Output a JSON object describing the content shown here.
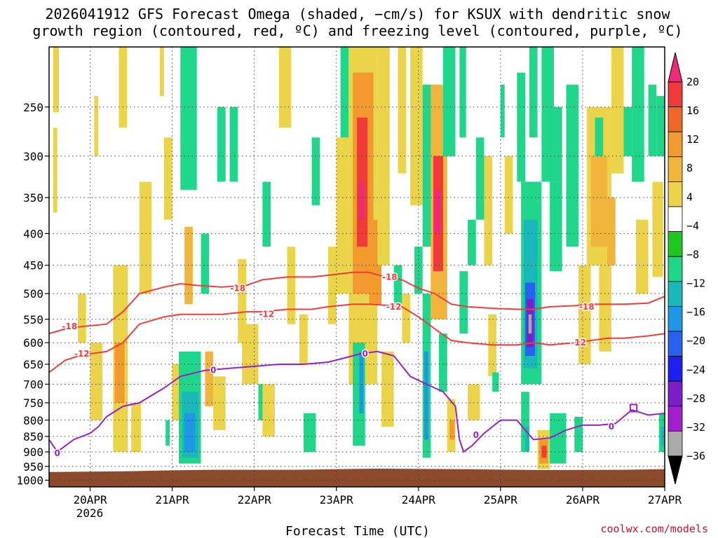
{
  "chart_data": {
    "type": "heatmap",
    "title_lines": [
      "2026041912 GFS Forecast Omega (shaded, −cm/s) for KSUX with dendritic snow",
      "growth region (contoured, red, ºC) and freezing level (contoured, purple, ºC)"
    ],
    "xlabel": "Forecast Time (UTC)",
    "ylabel": "",
    "x_ticks": [
      "20APR",
      "21APR",
      "22APR",
      "23APR",
      "24APR",
      "25APR",
      "26APR",
      "27APR"
    ],
    "x_tick_year": "2026",
    "x_range_days": [
      19.5,
      27.0
    ],
    "y_ticks": [
      250,
      300,
      350,
      400,
      450,
      500,
      550,
      600,
      650,
      700,
      750,
      800,
      850,
      900,
      950,
      1000
    ],
    "y_range_hpa": [
      200,
      1025
    ],
    "y_scale": "log-pressure",
    "grid": true,
    "colorbar": {
      "labels": [
        "20",
        "16",
        "12",
        "8",
        "4",
        "−4",
        "−8",
        "−12",
        "−16",
        "−20",
        "−24",
        "−28",
        "−32",
        "−36"
      ],
      "colors": [
        "#ee2a7b",
        "#f23a3a",
        "#f0672a",
        "#f39a2f",
        "#f1b43c",
        "#ebd34a",
        "#ffffff",
        "#1fc71f",
        "#1fd68a",
        "#1ab8b8",
        "#1f96e6",
        "#2860f0",
        "#1f1ff0",
        "#7a1fc7",
        "#a11fcf",
        "#aaaaaa",
        "#000000"
      ]
    },
    "series": [
      {
        "name": "-18",
        "color": "#f03c3c",
        "x": [
          19.5,
          19.7,
          19.9,
          20.2,
          20.4,
          20.6,
          20.9,
          21.1,
          21.3,
          21.6,
          21.9,
          22.1,
          22.4,
          22.7,
          22.9,
          23.2,
          23.4,
          23.6,
          23.8,
          24.0,
          24.2,
          24.4,
          24.6,
          24.9,
          25.2,
          25.4,
          25.6,
          25.9,
          26.1,
          26.3,
          26.5,
          26.8,
          27.0
        ],
        "y": [
          580,
          570,
          565,
          560,
          535,
          500,
          488,
          482,
          485,
          488,
          485,
          475,
          470,
          470,
          467,
          462,
          462,
          470,
          475,
          490,
          500,
          520,
          525,
          528,
          530,
          530,
          525,
          523,
          520,
          520,
          520,
          518,
          505
        ]
      },
      {
        "name": "-12",
        "color": "#f03c3c",
        "x": [
          19.5,
          19.7,
          19.9,
          20.2,
          20.4,
          20.6,
          20.9,
          21.1,
          21.3,
          21.6,
          21.9,
          22.1,
          22.4,
          22.7,
          22.9,
          23.2,
          23.4,
          23.6,
          23.8,
          24.0,
          24.2,
          24.4,
          24.6,
          24.9,
          25.2,
          25.4,
          25.6,
          25.9,
          26.1,
          26.3,
          26.5,
          26.8,
          27.0
        ],
        "y": [
          670,
          640,
          628,
          620,
          600,
          560,
          545,
          540,
          540,
          540,
          535,
          535,
          530,
          530,
          525,
          520,
          520,
          522,
          525,
          545,
          570,
          595,
          600,
          605,
          605,
          600,
          605,
          600,
          595,
          590,
          590,
          585,
          580
        ]
      },
      {
        "name": "0",
        "color": "#9b1fc7",
        "x": [
          19.5,
          19.6,
          19.8,
          20.0,
          20.1,
          20.2,
          20.4,
          20.6,
          20.9,
          21.1,
          21.4,
          21.7,
          22.0,
          22.3,
          22.6,
          22.9,
          23.1,
          23.3,
          23.5,
          23.7,
          23.9,
          24.1,
          24.3,
          24.45,
          24.5,
          24.55,
          24.65,
          24.8,
          25.0,
          25.2,
          25.3,
          25.4,
          25.6,
          25.8,
          26.0,
          26.2,
          26.4,
          26.6,
          26.8,
          27.0
        ],
        "y": [
          860,
          900,
          860,
          840,
          820,
          790,
          760,
          750,
          710,
          680,
          665,
          660,
          655,
          650,
          650,
          645,
          635,
          625,
          620,
          630,
          680,
          700,
          720,
          760,
          860,
          900,
          880,
          840,
          800,
          800,
          830,
          860,
          855,
          830,
          815,
          815,
          810,
          770,
          785,
          780
        ]
      }
    ],
    "contour_labels": [
      {
        "text": "-18",
        "x": 19.75,
        "y": 565
      },
      {
        "text": "-18",
        "x": 21.8,
        "y": 490
      },
      {
        "text": "-18",
        "x": 23.65,
        "y": 470
      },
      {
        "text": "-18",
        "x": 26.05,
        "y": 525
      },
      {
        "text": "-12",
        "x": 19.9,
        "y": 625
      },
      {
        "text": "-12",
        "x": 22.15,
        "y": 540
      },
      {
        "text": "-12",
        "x": 23.7,
        "y": 525
      },
      {
        "text": "-12",
        "x": 25.95,
        "y": 600
      },
      {
        "text": "0",
        "x": 19.6,
        "y": 905
      },
      {
        "text": "0",
        "x": 21.5,
        "y": 665
      },
      {
        "text": "0",
        "x": 23.35,
        "y": 625
      },
      {
        "text": "0",
        "x": 24.7,
        "y": 845
      },
      {
        "text": "0",
        "x": 26.35,
        "y": 820
      }
    ],
    "omega_patches": [
      {
        "x0": 19.55,
        "x1": 19.62,
        "p0": 200,
        "p1": 255,
        "value": 6
      },
      {
        "x0": 19.55,
        "x1": 19.6,
        "p0": 270,
        "p1": 370,
        "value": 6
      },
      {
        "x0": 19.85,
        "x1": 19.95,
        "p0": 500,
        "p1": 600,
        "value": 6
      },
      {
        "x0": 20.0,
        "x1": 20.15,
        "p0": 600,
        "p1": 800,
        "value": 6
      },
      {
        "x0": 20.05,
        "x1": 20.1,
        "p0": 240,
        "p1": 300,
        "value": 6
      },
      {
        "x0": 20.35,
        "x1": 20.45,
        "p0": 200,
        "p1": 270,
        "value": 6
      },
      {
        "x0": 20.28,
        "x1": 20.46,
        "p0": 450,
        "p1": 900,
        "value": 6
      },
      {
        "x0": 20.3,
        "x1": 20.42,
        "p0": 600,
        "p1": 750,
        "value": 14
      },
      {
        "x0": 20.5,
        "x1": 20.62,
        "p0": 750,
        "p1": 900,
        "value": 6
      },
      {
        "x0": 20.6,
        "x1": 20.75,
        "p0": 330,
        "p1": 500,
        "value": 6
      },
      {
        "x0": 20.85,
        "x1": 20.9,
        "p0": 200,
        "p1": 240,
        "value": 6
      },
      {
        "x0": 20.9,
        "x1": 21.0,
        "p0": 280,
        "p1": 380,
        "value": 6
      },
      {
        "x0": 21.1,
        "x1": 21.3,
        "p0": 200,
        "p1": 340,
        "value": -8
      },
      {
        "x0": 21.15,
        "x1": 21.25,
        "p0": 390,
        "p1": 520,
        "value": 10
      },
      {
        "x0": 21.0,
        "x1": 21.08,
        "p0": 650,
        "p1": 800,
        "value": 6
      },
      {
        "x0": 20.92,
        "x1": 20.97,
        "p0": 800,
        "p1": 880,
        "value": -8
      },
      {
        "x0": 21.08,
        "x1": 21.35,
        "p0": 620,
        "p1": 940,
        "value": -8
      },
      {
        "x0": 21.12,
        "x1": 21.32,
        "p0": 720,
        "p1": 920,
        "value": -14
      },
      {
        "x0": 21.15,
        "x1": 21.28,
        "p0": 780,
        "p1": 900,
        "value": -18
      },
      {
        "x0": 21.35,
        "x1": 21.45,
        "p0": 400,
        "p1": 500,
        "value": -8
      },
      {
        "x0": 21.4,
        "x1": 21.5,
        "p0": 620,
        "p1": 760,
        "value": 10
      },
      {
        "x0": 21.5,
        "x1": 21.65,
        "p0": 680,
        "p1": 830,
        "value": 6
      },
      {
        "x0": 21.55,
        "x1": 21.65,
        "p0": 250,
        "p1": 330,
        "value": -8
      },
      {
        "x0": 21.7,
        "x1": 21.8,
        "p0": 250,
        "p1": 330,
        "value": -8
      },
      {
        "x0": 21.8,
        "x1": 21.9,
        "p0": 440,
        "p1": 600,
        "value": 6
      },
      {
        "x0": 21.85,
        "x1": 22.05,
        "p0": 560,
        "p1": 700,
        "value": 6
      },
      {
        "x0": 22.1,
        "x1": 22.2,
        "p0": 330,
        "p1": 420,
        "value": -8
      },
      {
        "x0": 22.05,
        "x1": 22.12,
        "p0": 700,
        "p1": 800,
        "value": -8
      },
      {
        "x0": 22.1,
        "x1": 22.25,
        "p0": 700,
        "p1": 850,
        "value": 6
      },
      {
        "x0": 22.3,
        "x1": 22.45,
        "p0": 200,
        "p1": 270,
        "value": 6
      },
      {
        "x0": 22.4,
        "x1": 22.5,
        "p0": 420,
        "p1": 560,
        "value": 6
      },
      {
        "x0": 22.55,
        "x1": 22.65,
        "p0": 540,
        "p1": 650,
        "value": 6
      },
      {
        "x0": 22.6,
        "x1": 22.75,
        "p0": 780,
        "p1": 900,
        "value": -8
      },
      {
        "x0": 22.7,
        "x1": 22.8,
        "p0": 280,
        "p1": 360,
        "value": -8
      },
      {
        "x0": 22.9,
        "x1": 23.0,
        "p0": 420,
        "p1": 560,
        "value": 6
      },
      {
        "x0": 23.0,
        "x1": 23.15,
        "p0": 280,
        "p1": 500,
        "value": 6
      },
      {
        "x0": 23.05,
        "x1": 23.15,
        "p0": 200,
        "p1": 280,
        "value": -8
      },
      {
        "x0": 23.15,
        "x1": 23.5,
        "p0": 200,
        "p1": 700,
        "value": 6
      },
      {
        "x0": 23.2,
        "x1": 23.45,
        "p0": 220,
        "p1": 500,
        "value": 12
      },
      {
        "x0": 23.25,
        "x1": 23.38,
        "p0": 260,
        "p1": 420,
        "value": 16
      },
      {
        "x0": 23.28,
        "x1": 23.34,
        "p0": 330,
        "p1": 380,
        "value": 20
      },
      {
        "x0": 23.2,
        "x1": 23.35,
        "p0": 600,
        "p1": 880,
        "value": -8
      },
      {
        "x0": 23.28,
        "x1": 23.33,
        "p0": 620,
        "p1": 780,
        "value": -18
      },
      {
        "x0": 23.4,
        "x1": 23.55,
        "p0": 380,
        "p1": 520,
        "value": 12
      },
      {
        "x0": 23.5,
        "x1": 23.65,
        "p0": 200,
        "p1": 450,
        "value": 6
      },
      {
        "x0": 23.55,
        "x1": 23.7,
        "p0": 620,
        "p1": 820,
        "value": 6
      },
      {
        "x0": 23.7,
        "x1": 23.8,
        "p0": 450,
        "p1": 520,
        "value": -8
      },
      {
        "x0": 23.75,
        "x1": 23.85,
        "p0": 200,
        "p1": 320,
        "value": 6
      },
      {
        "x0": 23.8,
        "x1": 23.9,
        "p0": 500,
        "p1": 600,
        "value": 6
      },
      {
        "x0": 23.9,
        "x1": 24.05,
        "p0": 200,
        "p1": 360,
        "value": 6
      },
      {
        "x0": 23.95,
        "x1": 24.05,
        "p0": 420,
        "p1": 500,
        "value": -8
      },
      {
        "x0": 24.05,
        "x1": 24.2,
        "p0": 230,
        "p1": 420,
        "value": -8
      },
      {
        "x0": 24.05,
        "x1": 24.15,
        "p0": 500,
        "p1": 920,
        "value": -8
      },
      {
        "x0": 24.07,
        "x1": 24.12,
        "p0": 620,
        "p1": 860,
        "value": -16
      },
      {
        "x0": 24.15,
        "x1": 24.35,
        "p0": 230,
        "p1": 550,
        "value": 8
      },
      {
        "x0": 24.18,
        "x1": 24.3,
        "p0": 300,
        "p1": 460,
        "value": 16
      },
      {
        "x0": 24.2,
        "x1": 24.27,
        "p0": 340,
        "p1": 400,
        "value": 20
      },
      {
        "x0": 24.25,
        "x1": 24.35,
        "p0": 580,
        "p1": 720,
        "value": -8
      },
      {
        "x0": 24.3,
        "x1": 24.45,
        "p0": 200,
        "p1": 300,
        "value": -8
      },
      {
        "x0": 24.35,
        "x1": 24.45,
        "p0": 740,
        "p1": 900,
        "value": 6
      },
      {
        "x0": 24.38,
        "x1": 24.44,
        "p0": 800,
        "p1": 860,
        "value": 14
      },
      {
        "x0": 24.5,
        "x1": 24.58,
        "p0": 200,
        "p1": 280,
        "value": -8
      },
      {
        "x0": 24.5,
        "x1": 24.6,
        "p0": 460,
        "p1": 580,
        "value": -8
      },
      {
        "x0": 24.6,
        "x1": 24.7,
        "p0": 380,
        "p1": 450,
        "value": -8
      },
      {
        "x0": 24.6,
        "x1": 24.75,
        "p0": 700,
        "p1": 800,
        "value": 6
      },
      {
        "x0": 24.7,
        "x1": 24.8,
        "p0": 280,
        "p1": 380,
        "value": -8
      },
      {
        "x0": 24.8,
        "x1": 24.9,
        "p0": 300,
        "p1": 450,
        "value": 6
      },
      {
        "x0": 24.85,
        "x1": 24.95,
        "p0": 540,
        "p1": 680,
        "value": 6
      },
      {
        "x0": 24.9,
        "x1": 24.98,
        "p0": 670,
        "p1": 720,
        "value": -8
      },
      {
        "x0": 25.0,
        "x1": 25.05,
        "p0": 230,
        "p1": 280,
        "value": -8
      },
      {
        "x0": 25.05,
        "x1": 25.15,
        "p0": 300,
        "p1": 400,
        "value": 6
      },
      {
        "x0": 25.25,
        "x1": 25.5,
        "p0": 330,
        "p1": 700,
        "value": -8
      },
      {
        "x0": 25.28,
        "x1": 25.45,
        "p0": 380,
        "p1": 660,
        "value": -14
      },
      {
        "x0": 25.3,
        "x1": 25.42,
        "p0": 480,
        "p1": 630,
        "value": -22
      },
      {
        "x0": 25.32,
        "x1": 25.4,
        "p0": 510,
        "p1": 610,
        "value": -26
      },
      {
        "x0": 25.34,
        "x1": 25.38,
        "p0": 540,
        "p1": 580,
        "value": -34
      },
      {
        "x0": 25.25,
        "x1": 25.35,
        "p0": 720,
        "p1": 900,
        "value": -8
      },
      {
        "x0": 25.3,
        "x1": 25.35,
        "p0": 820,
        "p1": 900,
        "value": -14
      },
      {
        "x0": 25.2,
        "x1": 25.3,
        "p0": 220,
        "p1": 330,
        "value": -8
      },
      {
        "x0": 25.35,
        "x1": 25.45,
        "p0": 200,
        "p1": 280,
        "value": -8
      },
      {
        "x0": 25.5,
        "x1": 25.65,
        "p0": 200,
        "p1": 330,
        "value": -8
      },
      {
        "x0": 25.45,
        "x1": 25.6,
        "p0": 830,
        "p1": 960,
        "value": 6
      },
      {
        "x0": 25.47,
        "x1": 25.58,
        "p0": 860,
        "p1": 940,
        "value": 14
      },
      {
        "x0": 25.5,
        "x1": 25.56,
        "p0": 880,
        "p1": 920,
        "value": 18
      },
      {
        "x0": 25.6,
        "x1": 25.75,
        "p0": 330,
        "p1": 460,
        "value": -8
      },
      {
        "x0": 25.65,
        "x1": 25.75,
        "p0": 250,
        "p1": 330,
        "value": -8
      },
      {
        "x0": 25.6,
        "x1": 25.8,
        "p0": 780,
        "p1": 940,
        "value": -8
      },
      {
        "x0": 25.8,
        "x1": 25.95,
        "p0": 230,
        "p1": 420,
        "value": -8
      },
      {
        "x0": 25.9,
        "x1": 26.0,
        "p0": 790,
        "p1": 900,
        "value": -8
      },
      {
        "x0": 25.95,
        "x1": 26.1,
        "p0": 450,
        "p1": 650,
        "value": 6
      },
      {
        "x0": 26.05,
        "x1": 26.35,
        "p0": 250,
        "p1": 450,
        "value": 6
      },
      {
        "x0": 26.1,
        "x1": 26.3,
        "p0": 300,
        "p1": 420,
        "value": 10
      },
      {
        "x0": 26.15,
        "x1": 26.25,
        "p0": 260,
        "p1": 300,
        "value": -8
      },
      {
        "x0": 26.2,
        "x1": 26.35,
        "p0": 450,
        "p1": 620,
        "value": 6
      },
      {
        "x0": 26.3,
        "x1": 26.4,
        "p0": 350,
        "p1": 450,
        "value": 10
      },
      {
        "x0": 26.35,
        "x1": 26.5,
        "p0": 200,
        "p1": 320,
        "value": 6
      },
      {
        "x0": 26.5,
        "x1": 26.6,
        "p0": 250,
        "p1": 300,
        "value": -8
      },
      {
        "x0": 26.6,
        "x1": 26.75,
        "p0": 200,
        "p1": 330,
        "value": -8
      },
      {
        "x0": 26.65,
        "x1": 26.8,
        "p0": 380,
        "p1": 500,
        "value": 6
      },
      {
        "x0": 26.8,
        "x1": 26.9,
        "p0": 230,
        "p1": 300,
        "value": -8
      },
      {
        "x0": 26.85,
        "x1": 26.98,
        "p0": 330,
        "p1": 470,
        "value": 6
      },
      {
        "x0": 26.9,
        "x1": 27.0,
        "p0": 240,
        "p1": 300,
        "value": -8
      },
      {
        "x0": 26.93,
        "x1": 27.0,
        "p0": 780,
        "p1": 900,
        "value": -8
      },
      {
        "x0": 26.95,
        "x1": 27.0,
        "p0": 820,
        "p1": 880,
        "value": -14
      }
    ],
    "boxes": [
      {
        "x0": 26.58,
        "x1": 26.66,
        "p0": 755,
        "p1": 775
      }
    ],
    "surface_color": "#8b4a2b",
    "credit": "coolwx.com/models"
  }
}
